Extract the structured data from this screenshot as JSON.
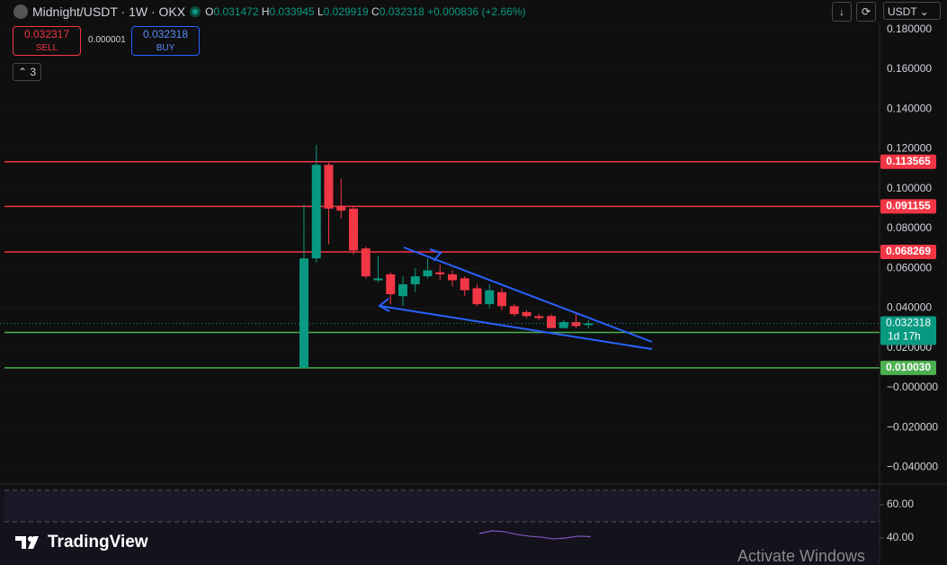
{
  "header": {
    "symbol": "Midnight/USDT · 1W · OKX",
    "open_label": "O",
    "open": "0.031472",
    "high_label": "H",
    "high": "0.033945",
    "low_label": "L",
    "low": "0.029919",
    "close_label": "C",
    "close": "0.032318",
    "change": "+0.000836 (+2.66%)"
  },
  "trade": {
    "sell_price": "0.032317",
    "sell_label": "SELL",
    "spread": "0.000001",
    "buy_price": "0.032318",
    "buy_label": "BUY"
  },
  "indicators_count": "3",
  "currency": "USDT",
  "logo": "TradingView",
  "watermark": "Activate Windows",
  "chart_data": [
    {
      "type": "candlestick",
      "open": [
        0.01,
        0.065,
        0.112,
        0.091,
        0.09,
        0.07,
        0.054,
        0.057,
        0.046,
        0.052,
        0.056,
        0.058,
        0.057,
        0.055,
        0.05,
        0.042,
        0.048,
        0.041,
        0.038,
        0.036,
        0.036,
        0.03,
        0.033,
        0.031472
      ],
      "high": [
        0.092,
        0.122,
        0.113,
        0.105,
        0.091,
        0.071,
        0.066,
        0.058,
        0.056,
        0.06,
        0.065,
        0.062,
        0.059,
        0.056,
        0.052,
        0.052,
        0.05,
        0.042,
        0.039,
        0.037,
        0.037,
        0.034,
        0.037,
        0.033945
      ],
      "low": [
        0.01,
        0.063,
        0.072,
        0.085,
        0.067,
        0.055,
        0.053,
        0.042,
        0.041,
        0.048,
        0.055,
        0.054,
        0.051,
        0.046,
        0.041,
        0.04,
        0.039,
        0.036,
        0.035,
        0.034,
        0.03,
        0.03,
        0.03,
        0.029919
      ],
      "close": [
        0.065,
        0.112,
        0.09,
        0.089,
        0.069,
        0.056,
        0.055,
        0.047,
        0.052,
        0.056,
        0.059,
        0.057,
        0.054,
        0.049,
        0.042,
        0.049,
        0.041,
        0.037,
        0.036,
        0.035,
        0.03,
        0.033,
        0.031,
        0.032318
      ],
      "up_color": "#089981",
      "down_color": "#f23645",
      "ylim": [
        -0.047,
        0.1826
      ],
      "yticks": [
        {
          "value": 0.18,
          "label": "0.180000"
        },
        {
          "value": 0.16,
          "label": "0.160000"
        },
        {
          "value": 0.14,
          "label": "0.140000"
        },
        {
          "value": 0.12,
          "label": "0.120000"
        },
        {
          "value": 0.1,
          "label": "0.100000"
        },
        {
          "value": 0.08,
          "label": "0.080000"
        },
        {
          "value": 0.06,
          "label": "0.060000"
        },
        {
          "value": 0.04,
          "label": "0.040000"
        },
        {
          "value": 0.02,
          "label": "0.020000"
        },
        {
          "value": 0,
          "label": "−0.000000"
        },
        {
          "value": -0.02,
          "label": "−0.020000"
        },
        {
          "value": -0.04,
          "label": "−0.040000"
        }
      ],
      "levels": [
        {
          "value": 0.113565,
          "color": "#f23645"
        },
        {
          "value": 0.091155,
          "color": "#f23645"
        },
        {
          "value": 0.068269,
          "color": "#f23645"
        },
        {
          "value": 0.0278,
          "color": "#4caf50"
        },
        {
          "value": 0.01003,
          "label": "0.010030",
          "color": "#4caf50"
        }
      ],
      "last_price": 0.032318,
      "countdown": "1d 17h"
    },
    {
      "type": "line",
      "values": [
        42.7,
        44.3,
        43.8,
        42.2,
        41.1,
        40.5,
        39.5,
        40,
        41.1,
        40.8
      ],
      "color": "#7e57c2",
      "ylim": [
        23.8,
        69.7
      ],
      "yticks": [
        {
          "value": 60,
          "label": "60.00"
        },
        {
          "value": 40,
          "label": "40.00"
        }
      ]
    }
  ]
}
